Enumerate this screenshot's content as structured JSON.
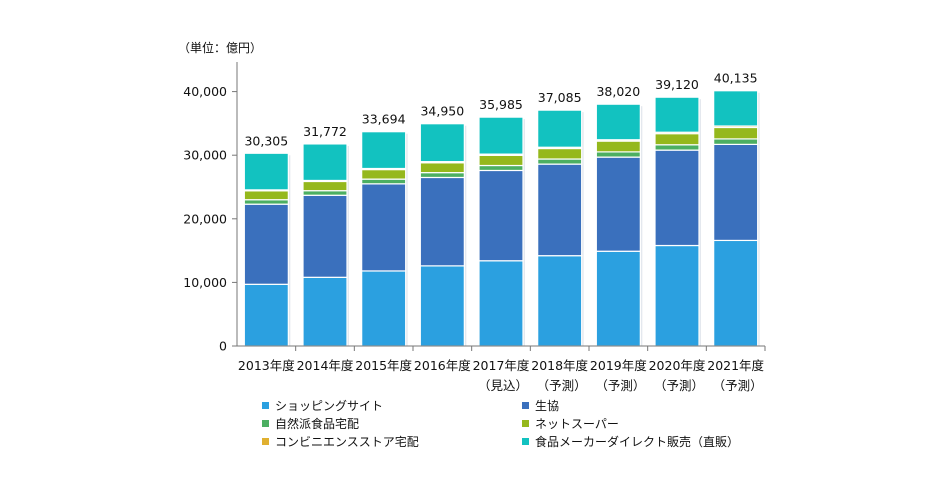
{
  "chart_data": {
    "type": "bar",
    "stacked": true,
    "unit_label": "（単位：億円）",
    "categories": [
      "2013年度",
      "2014年度",
      "2015年度",
      "2016年度",
      "2017年度",
      "2018年度",
      "2019年度",
      "2020年度",
      "2021年度"
    ],
    "category_sublabels": [
      "",
      "",
      "",
      "",
      "（見込）",
      "（予測）",
      "（予測）",
      "（予測）",
      "（予測）"
    ],
    "yticks": [
      "0",
      "10,000",
      "20,000",
      "30,000",
      "40,000"
    ],
    "ylim": [
      0,
      45000
    ],
    "totals": [
      30305,
      31772,
      33694,
      34950,
      35985,
      37085,
      38020,
      39120,
      40135
    ],
    "total_labels": [
      "30,305",
      "31,772",
      "33,694",
      "34,950",
      "35,985",
      "37,085",
      "38,020",
      "39,120",
      "40,135"
    ],
    "series": [
      {
        "name": "ショッピングサイト",
        "color": "#2ba0e0",
        "values": [
          9700,
          10800,
          11800,
          12600,
          13400,
          14200,
          14900,
          15800,
          16600
        ]
      },
      {
        "name": "生協",
        "color": "#3a70bd",
        "values": [
          12600,
          12900,
          13700,
          13900,
          14200,
          14400,
          14800,
          15000,
          15100
        ]
      },
      {
        "name": "自然派食品宅配",
        "color": "#4caf62",
        "values": [
          700,
          720,
          740,
          760,
          780,
          800,
          820,
          840,
          860
        ]
      },
      {
        "name": "ネットスーパー",
        "color": "#95b81c",
        "values": [
          1400,
          1450,
          1500,
          1550,
          1600,
          1650,
          1700,
          1750,
          1800
        ]
      },
      {
        "name": "コンビニエンスストア宅配",
        "color": "#e0b030",
        "values": [
          150,
          160,
          170,
          180,
          190,
          200,
          210,
          220,
          230
        ]
      },
      {
        "name": "食品メーカーダイレクト販売（直販）",
        "color": "#12c2c0",
        "values": [
          5755,
          5742,
          5784,
          5960,
          5815,
          5835,
          5590,
          5510,
          5545
        ]
      }
    ],
    "legend_order": [
      0,
      1,
      2,
      3,
      4,
      5
    ],
    "legend_position": "bottom",
    "grid": false
  }
}
